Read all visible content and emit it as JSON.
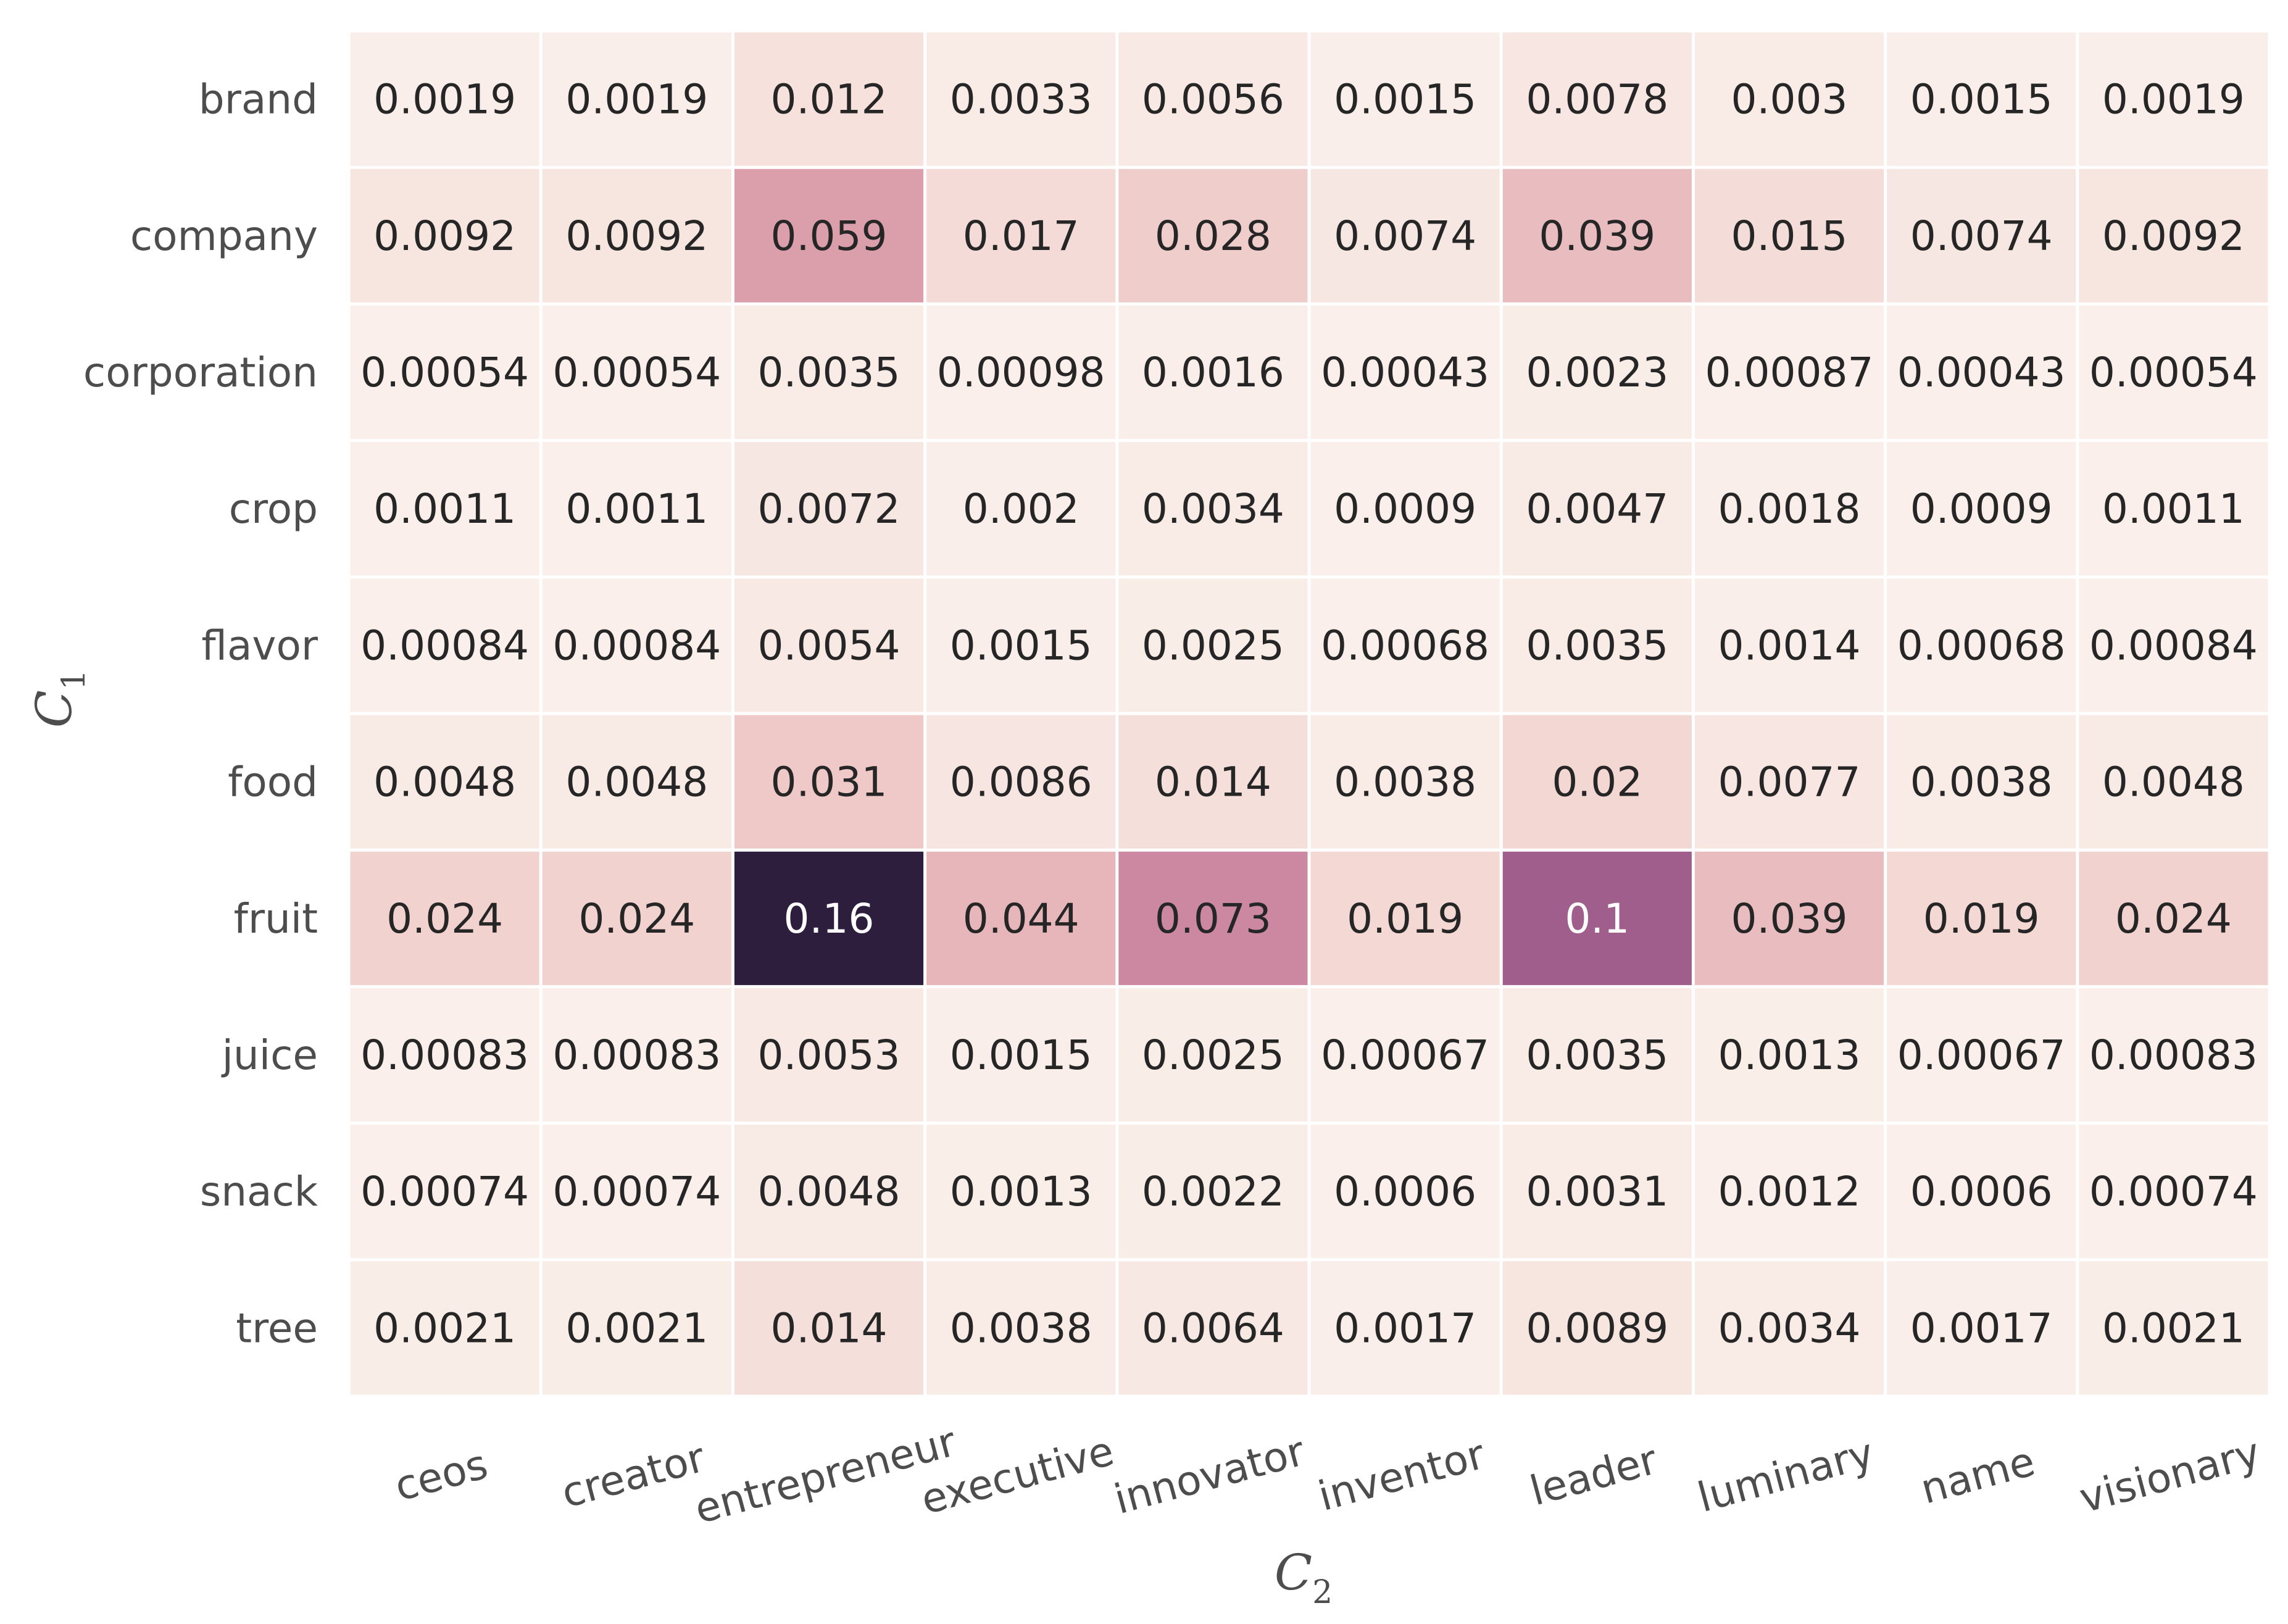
{
  "chart_data": {
    "type": "heatmap",
    "xlabel": "C",
    "xlabel_subscript": "2",
    "ylabel": "C",
    "ylabel_subscript": "1",
    "x_categories": [
      "ceos",
      "creator",
      "entrepreneur",
      "executive",
      "innovator",
      "inventor",
      "leader",
      "luminary",
      "name",
      "visionary"
    ],
    "y_categories": [
      "brand",
      "company",
      "corporation",
      "crop",
      "flavor",
      "food",
      "fruit",
      "juice",
      "snack",
      "tree"
    ],
    "values": [
      [
        0.0019,
        0.0019,
        0.012,
        0.0033,
        0.0056,
        0.0015,
        0.0078,
        0.003,
        0.0015,
        0.0019
      ],
      [
        0.0092,
        0.0092,
        0.059,
        0.017,
        0.028,
        0.0074,
        0.039,
        0.015,
        0.0074,
        0.0092
      ],
      [
        0.00054,
        0.00054,
        0.0035,
        0.00098,
        0.0016,
        0.00043,
        0.0023,
        0.00087,
        0.00043,
        0.00054
      ],
      [
        0.0011,
        0.0011,
        0.0072,
        0.002,
        0.0034,
        0.0009,
        0.0047,
        0.0018,
        0.0009,
        0.0011
      ],
      [
        0.00084,
        0.00084,
        0.0054,
        0.0015,
        0.0025,
        0.00068,
        0.0035,
        0.0014,
        0.00068,
        0.00084
      ],
      [
        0.0048,
        0.0048,
        0.031,
        0.0086,
        0.014,
        0.0038,
        0.02,
        0.0077,
        0.0038,
        0.0048
      ],
      [
        0.024,
        0.024,
        0.16,
        0.044,
        0.073,
        0.019,
        0.1,
        0.039,
        0.019,
        0.024
      ],
      [
        0.00083,
        0.00083,
        0.0053,
        0.0015,
        0.0025,
        0.00067,
        0.0035,
        0.0013,
        0.00067,
        0.00083
      ],
      [
        0.00074,
        0.00074,
        0.0048,
        0.0013,
        0.0022,
        0.0006,
        0.0031,
        0.0012,
        0.0006,
        0.00074
      ],
      [
        0.0021,
        0.0021,
        0.014,
        0.0038,
        0.0064,
        0.0017,
        0.0089,
        0.0034,
        0.0017,
        0.0021
      ]
    ],
    "value_range": [
      0,
      0.16
    ],
    "colorscale": [
      "#faf0eb",
      "#f0cfcb",
      "#e1a8b1",
      "#c47c9a",
      "#925486",
      "#5c3468",
      "#2d1e3e"
    ],
    "legend": "none",
    "grid": false
  }
}
